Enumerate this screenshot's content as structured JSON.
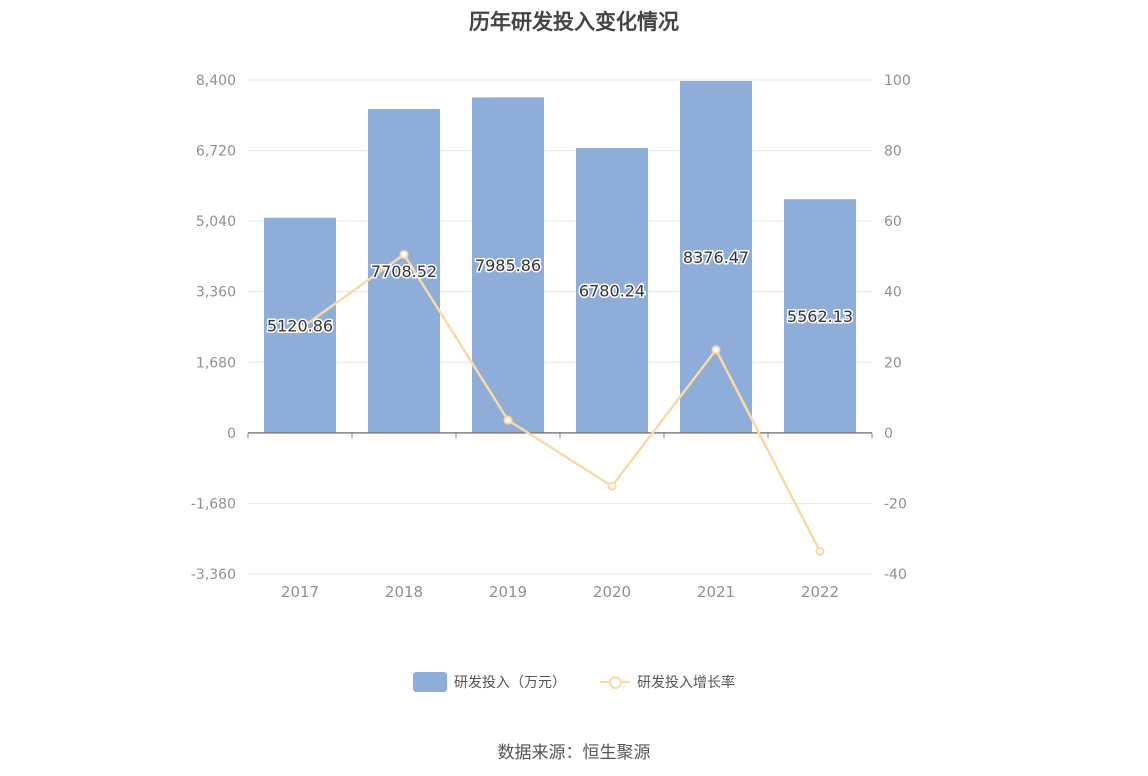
{
  "title": "历年研发投入变化情况",
  "source": "数据来源：恒生聚源",
  "colors": {
    "bar": "#8eadd9",
    "line": "#fcd9a4",
    "grid": "#e1e4ef",
    "axis": "#7f7f7f",
    "tick_text": "#909090"
  },
  "chart_data": {
    "type": "bar",
    "categories": [
      "2017",
      "2018",
      "2019",
      "2020",
      "2021",
      "2022"
    ],
    "series": [
      {
        "name": "研发投入（万元）",
        "type": "bar",
        "axis": "left",
        "values": [
          5120.86,
          7708.52,
          7985.86,
          6780.24,
          8376.47,
          5562.13
        ],
        "labels": [
          "5120.86",
          "7708.52",
          "7985.86",
          "6780.24",
          "8376.47",
          "5562.13"
        ]
      },
      {
        "name": "研发投入增长率",
        "type": "line",
        "axis": "right",
        "values": [
          29.5,
          50.53,
          3.6,
          -15.1,
          23.54,
          -33.6
        ]
      }
    ],
    "y_left": {
      "ticks": [
        8400,
        6720,
        5040,
        3360,
        1680,
        0,
        -1680,
        -3360
      ],
      "tick_labels": [
        "8,400",
        "6,720",
        "5,040",
        "3,360",
        "1,680",
        "0",
        "-1,680",
        "-3,360"
      ],
      "ylim": [
        -3360,
        8400
      ]
    },
    "y_right": {
      "ticks": [
        100,
        80,
        60,
        40,
        20,
        0,
        -20,
        -40
      ],
      "tick_labels": [
        "100",
        "80",
        "60",
        "40",
        "20",
        "0",
        "-20",
        "-40"
      ],
      "ylim": [
        -40,
        100
      ]
    },
    "grid": true,
    "legend_position": "bottom"
  }
}
